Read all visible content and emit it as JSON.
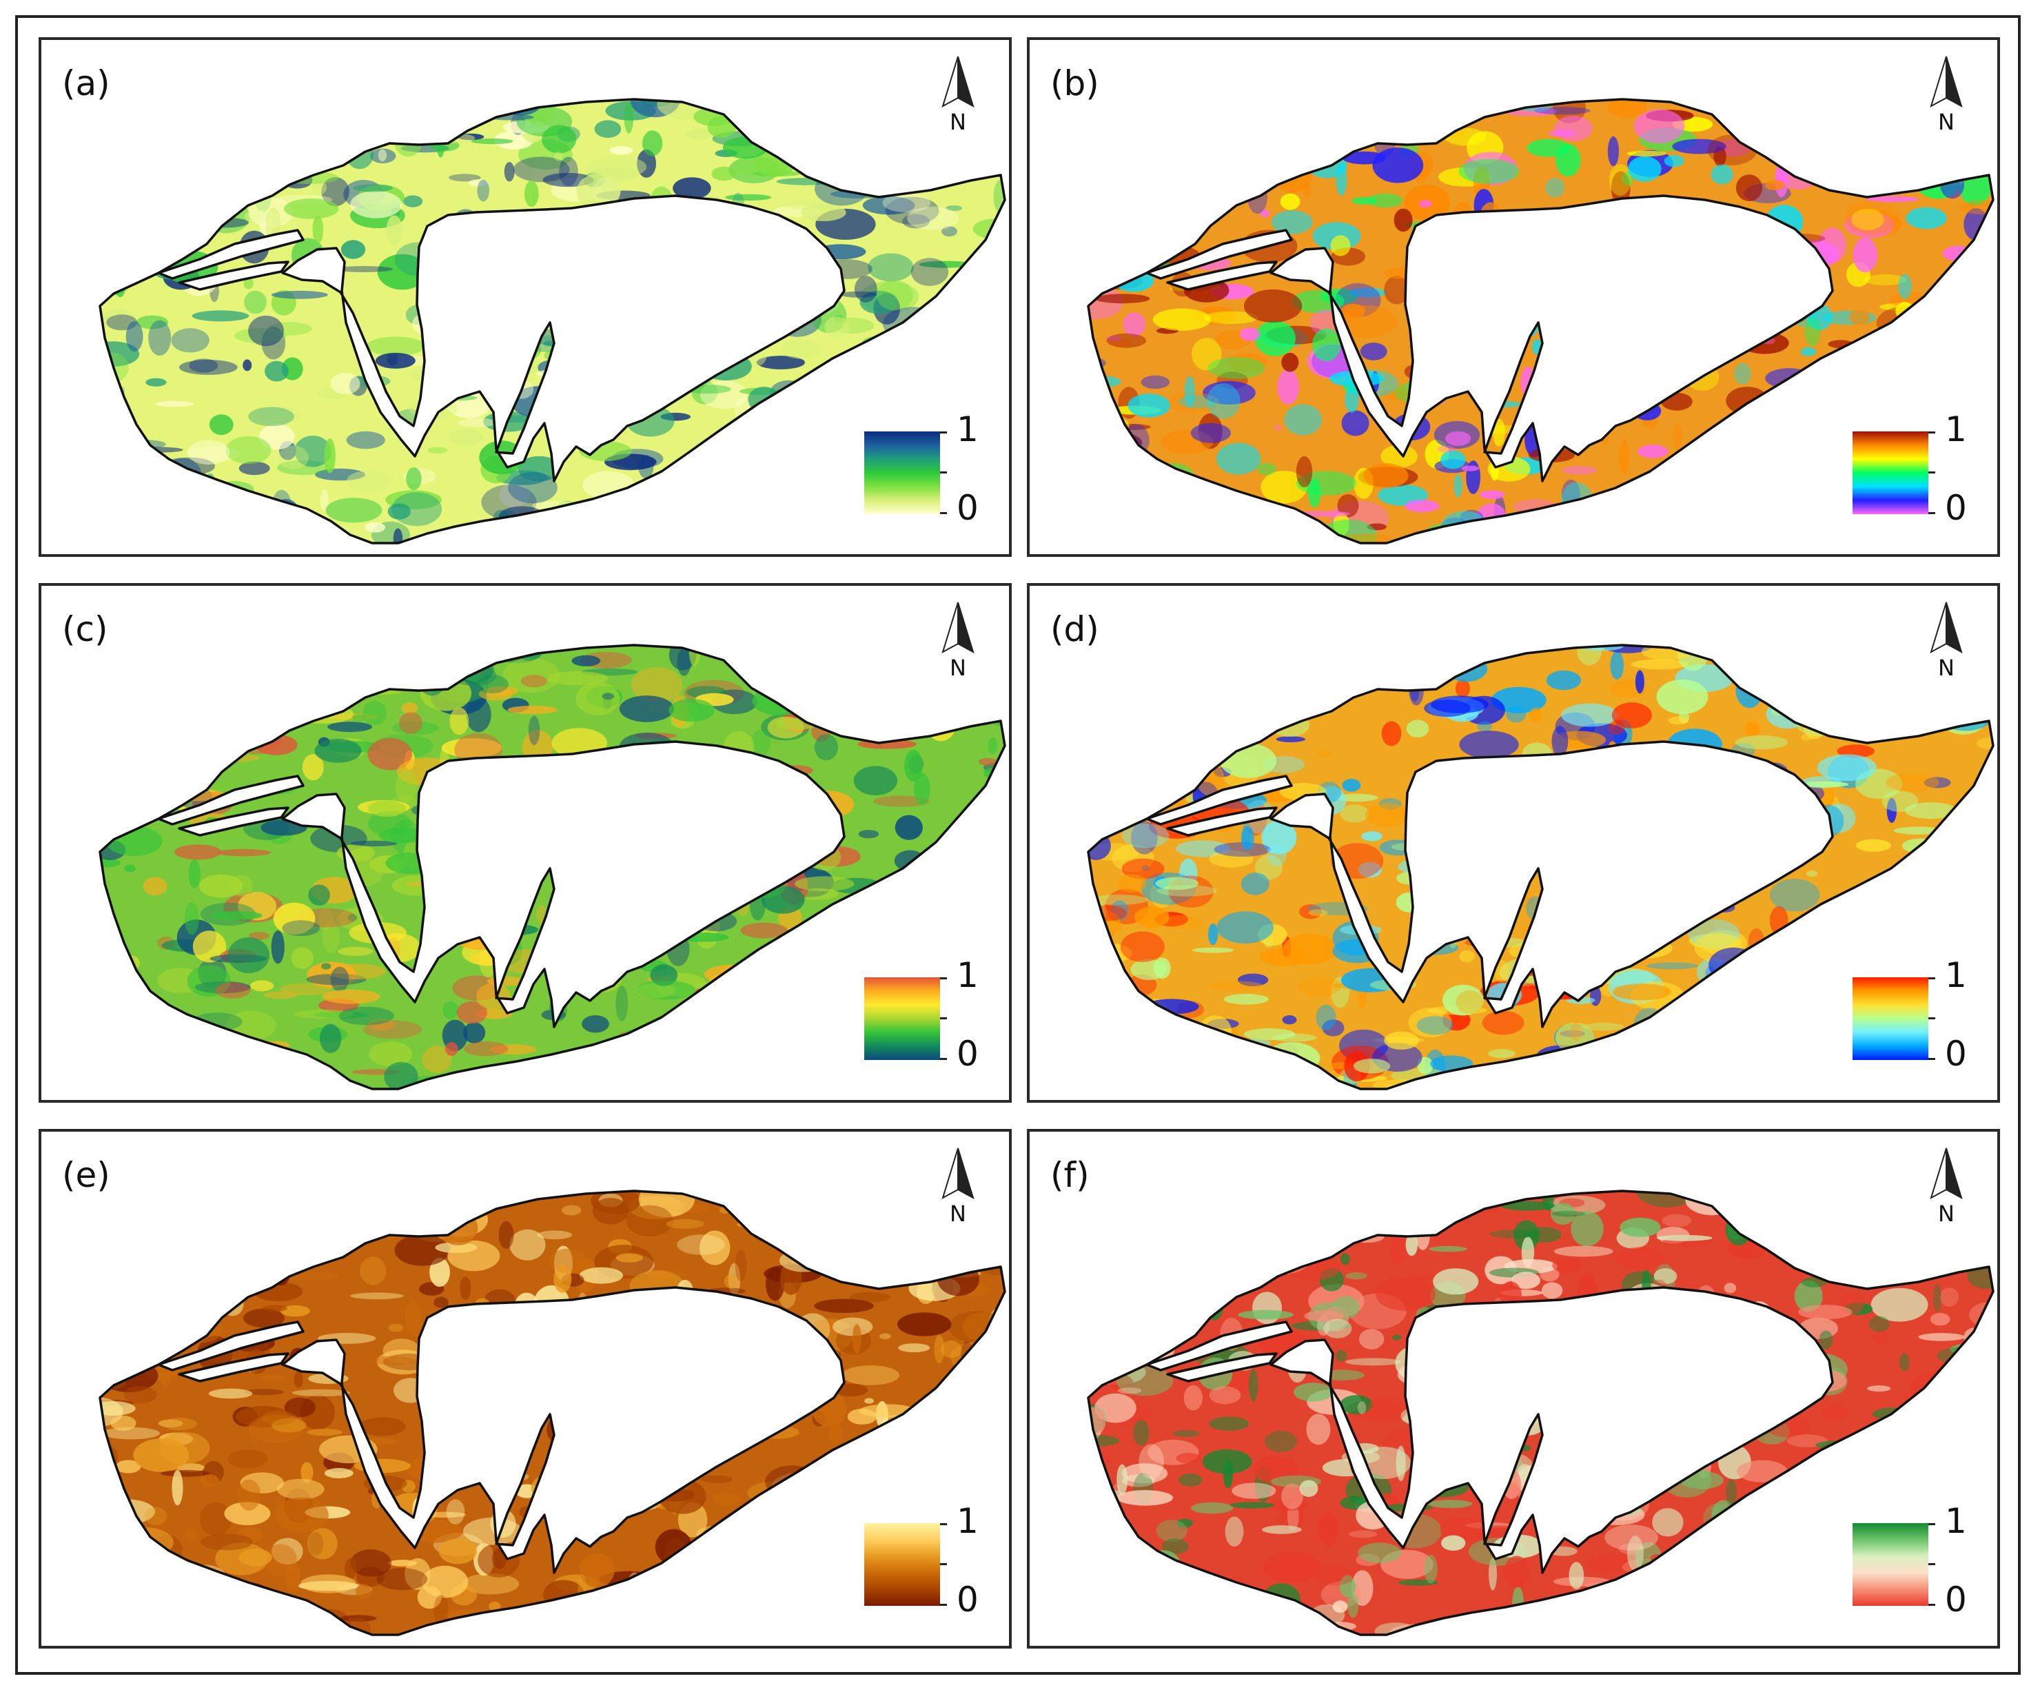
{
  "panels": [
    {
      "label": "(a)",
      "north": "N",
      "legend_max": "1",
      "legend_min": "0",
      "colors": [
        "#ffffcc",
        "#d9f07a",
        "#7de040",
        "#2dc83a",
        "#1f9f7a",
        "#1c5fa0",
        "#0b2b7f"
      ],
      "base": "#e4f57a"
    },
    {
      "label": "(b)",
      "north": "N",
      "legend_max": "1",
      "legend_min": "0",
      "colors": [
        "#ff66ff",
        "#2020ff",
        "#00e0ff",
        "#00ff60",
        "#ffff00",
        "#ff8800",
        "#a01000"
      ],
      "base": "#ee9a20"
    },
    {
      "label": "(c)",
      "north": "N",
      "legend_max": "1",
      "legend_min": "0",
      "colors": [
        "#0b4a80",
        "#138a5a",
        "#35c43a",
        "#a8d830",
        "#ffe930",
        "#ffae1e",
        "#e2543a"
      ],
      "base": "#7ac93a"
    },
    {
      "label": "(d)",
      "north": "N",
      "legend_max": "1",
      "legend_min": "0",
      "colors": [
        "#0018ff",
        "#00aaff",
        "#70f0ff",
        "#b8ff90",
        "#ffe030",
        "#ff9a00",
        "#ff1a00"
      ],
      "base": "#f0a820"
    },
    {
      "label": "(e)",
      "north": "N",
      "legend_max": "1",
      "legend_min": "0",
      "colors": [
        "#7a1a00",
        "#a84400",
        "#cc6a0a",
        "#e89b20",
        "#ffd060",
        "#fff2a0"
      ],
      "base": "#c2620c"
    },
    {
      "label": "(f)",
      "north": "N",
      "legend_max": "1",
      "legend_min": "0",
      "colors": [
        "#e83a2a",
        "#f78f7a",
        "#fde0c8",
        "#d8f0c0",
        "#6cc46a",
        "#128a32"
      ],
      "base": "#e2432e"
    }
  ]
}
